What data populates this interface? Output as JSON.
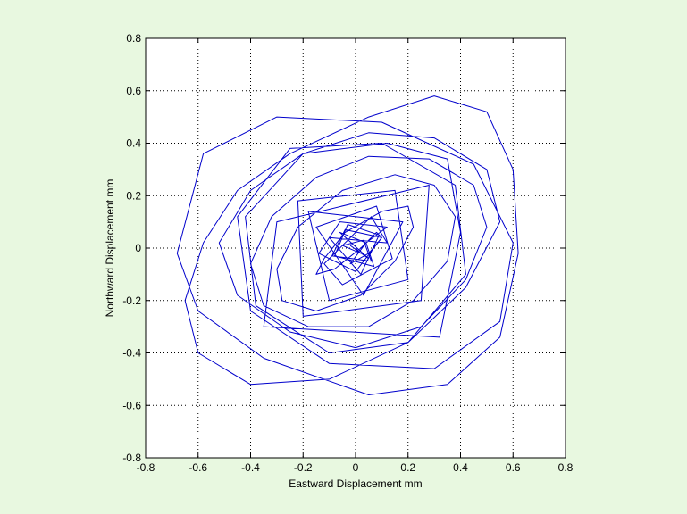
{
  "figure": {
    "background": "#e8f8e0",
    "axes_background": "#ffffff",
    "line_color": "#0000cc"
  },
  "chart_data": {
    "type": "line",
    "title": "",
    "xlabel": "Eastward Displacement mm",
    "ylabel": "Northward Displacement mm",
    "xlim": [
      -0.8,
      0.8
    ],
    "ylim": [
      -0.8,
      0.8
    ],
    "xticks": [
      -0.8,
      -0.6,
      -0.4,
      -0.2,
      0,
      0.2,
      0.4,
      0.6,
      0.8
    ],
    "yticks": [
      -0.8,
      -0.6,
      -0.4,
      -0.2,
      0,
      0.2,
      0.4,
      0.6,
      0.8
    ],
    "xtick_labels": [
      "-0.8",
      "-0.6",
      "-0.4",
      "-0.2",
      "0",
      "0.2",
      "0.4",
      "0.6",
      "0.8"
    ],
    "ytick_labels": [
      "-0.8",
      "-0.6",
      "-0.4",
      "-0.2",
      "0",
      "0.2",
      "0.4",
      "0.6",
      "0.8"
    ],
    "grid": true,
    "grid_style": "dotted",
    "series": [
      {
        "x": [
          -0.02,
          0.05,
          -0.06,
          0.04,
          0.07,
          -0.08,
          -0.03,
          0.09,
          0.02,
          -0.1,
          0.12,
          0.06,
          -0.12,
          -0.05,
          0.14,
          0.08,
          -0.15,
          0.03,
          0.18,
          -0.18,
          -0.1,
          0.2,
          0.15,
          -0.22,
          -0.2,
          0.25,
          0.28,
          -0.3,
          -0.35,
          0.32,
          0.4,
          0.35,
          0.12,
          -0.2,
          -0.42,
          -0.38,
          -0.1,
          0.2,
          0.42,
          0.38,
          0.1,
          -0.25,
          -0.45,
          -0.4,
          -0.1,
          0.3,
          0.55,
          0.6,
          0.45,
          0.1,
          -0.3,
          -0.58,
          -0.68,
          -0.6,
          -0.35,
          0.05,
          0.35,
          0.55,
          0.62,
          0.6,
          0.5,
          0.3,
          0.05,
          -0.25,
          -0.45,
          -0.58,
          -0.65,
          -0.6,
          -0.4,
          -0.1,
          0.2,
          0.42,
          0.55,
          0.5,
          0.3,
          0.05,
          -0.2,
          -0.4,
          -0.52,
          -0.45,
          -0.25,
          0.0,
          0.25,
          0.42,
          0.5,
          0.45,
          0.28,
          0.05,
          -0.15,
          -0.32,
          -0.4,
          -0.35,
          -0.18,
          0.05,
          0.22,
          0.35,
          0.38,
          0.3,
          0.15,
          -0.05,
          -0.22,
          -0.3,
          -0.28,
          -0.15,
          0.02,
          0.15,
          0.22,
          0.2,
          0.1,
          -0.04,
          -0.12,
          -0.15,
          -0.08,
          0.02,
          0.08,
          0.1,
          0.05,
          -0.02,
          0.04,
          0.12,
          -0.06,
          -0.14,
          0.0,
          0.1,
          -0.04,
          -0.09,
          0.06,
          0.03,
          -0.05,
          0.02,
          0.0
        ],
        "y": [
          0.01,
          -0.04,
          0.06,
          0.02,
          -0.07,
          -0.03,
          0.09,
          0.05,
          -0.1,
          0.04,
          0.02,
          0.12,
          -0.06,
          -0.14,
          -0.04,
          0.16,
          0.08,
          -0.18,
          0.1,
          0.14,
          -0.2,
          -0.12,
          0.22,
          0.18,
          -0.26,
          -0.2,
          0.24,
          0.1,
          -0.3,
          -0.34,
          0.06,
          0.34,
          0.4,
          0.36,
          0.12,
          -0.22,
          -0.4,
          -0.36,
          -0.1,
          0.24,
          0.4,
          0.38,
          0.12,
          -0.24,
          -0.44,
          -0.46,
          -0.28,
          0.02,
          0.32,
          0.48,
          0.5,
          0.36,
          -0.02,
          -0.24,
          -0.42,
          -0.56,
          -0.52,
          -0.34,
          -0.02,
          0.3,
          0.52,
          0.58,
          0.5,
          0.36,
          0.22,
          0.02,
          -0.2,
          -0.4,
          -0.52,
          -0.5,
          -0.36,
          -0.15,
          0.1,
          0.3,
          0.42,
          0.44,
          0.36,
          0.22,
          0.02,
          -0.18,
          -0.32,
          -0.38,
          -0.3,
          -0.12,
          0.08,
          0.24,
          0.34,
          0.35,
          0.27,
          0.12,
          -0.06,
          -0.22,
          -0.3,
          -0.3,
          -0.2,
          -0.05,
          0.12,
          0.24,
          0.28,
          0.22,
          0.08,
          -0.08,
          -0.2,
          -0.24,
          -0.18,
          -0.05,
          0.08,
          0.16,
          0.14,
          0.06,
          -0.04,
          -0.1,
          -0.08,
          0.0,
          0.06,
          0.04,
          -0.02,
          -0.06,
          0.02,
          0.08,
          0.1,
          -0.02,
          -0.09,
          0.04,
          0.07,
          -0.03,
          -0.05,
          0.03,
          0.01,
          -0.02,
          0.0
        ]
      }
    ]
  }
}
